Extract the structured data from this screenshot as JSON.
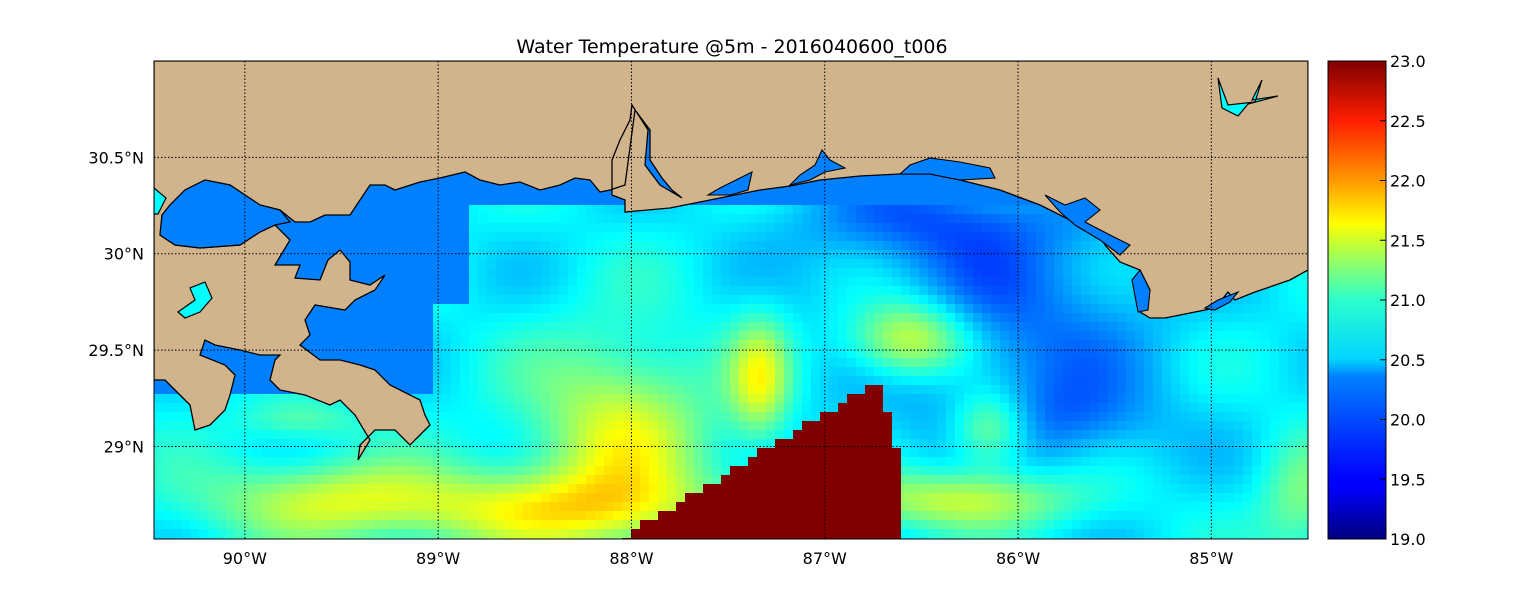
{
  "chart_data": {
    "type": "heatmap",
    "title": "Water Temperature @5m - 2016040600_t006",
    "x_ticks": [
      "90°W",
      "89°W",
      "88°W",
      "87°W",
      "86°W",
      "85°W"
    ],
    "x_tick_values": [
      -90,
      -89,
      -88,
      -87,
      -86,
      -85
    ],
    "y_ticks": [
      "30.5°N",
      "30°N",
      "29.5°N",
      "29°N"
    ],
    "y_tick_values": [
      30.5,
      30,
      29.5,
      29
    ],
    "xlim": [
      -90.47,
      -84.5
    ],
    "ylim": [
      28.52,
      31.0
    ],
    "grid": true,
    "colormap": "jet",
    "colorbar": {
      "range": [
        19.0,
        23.0
      ],
      "ticks": [
        "19.0",
        "19.5",
        "20.0",
        "20.5",
        "21.0",
        "21.5",
        "22.0",
        "22.5",
        "23.0"
      ],
      "placement": "right"
    },
    "land_color": "#d2b48c",
    "inland_water_color": "#0080ff",
    "lake_color": "#00ffff"
  }
}
